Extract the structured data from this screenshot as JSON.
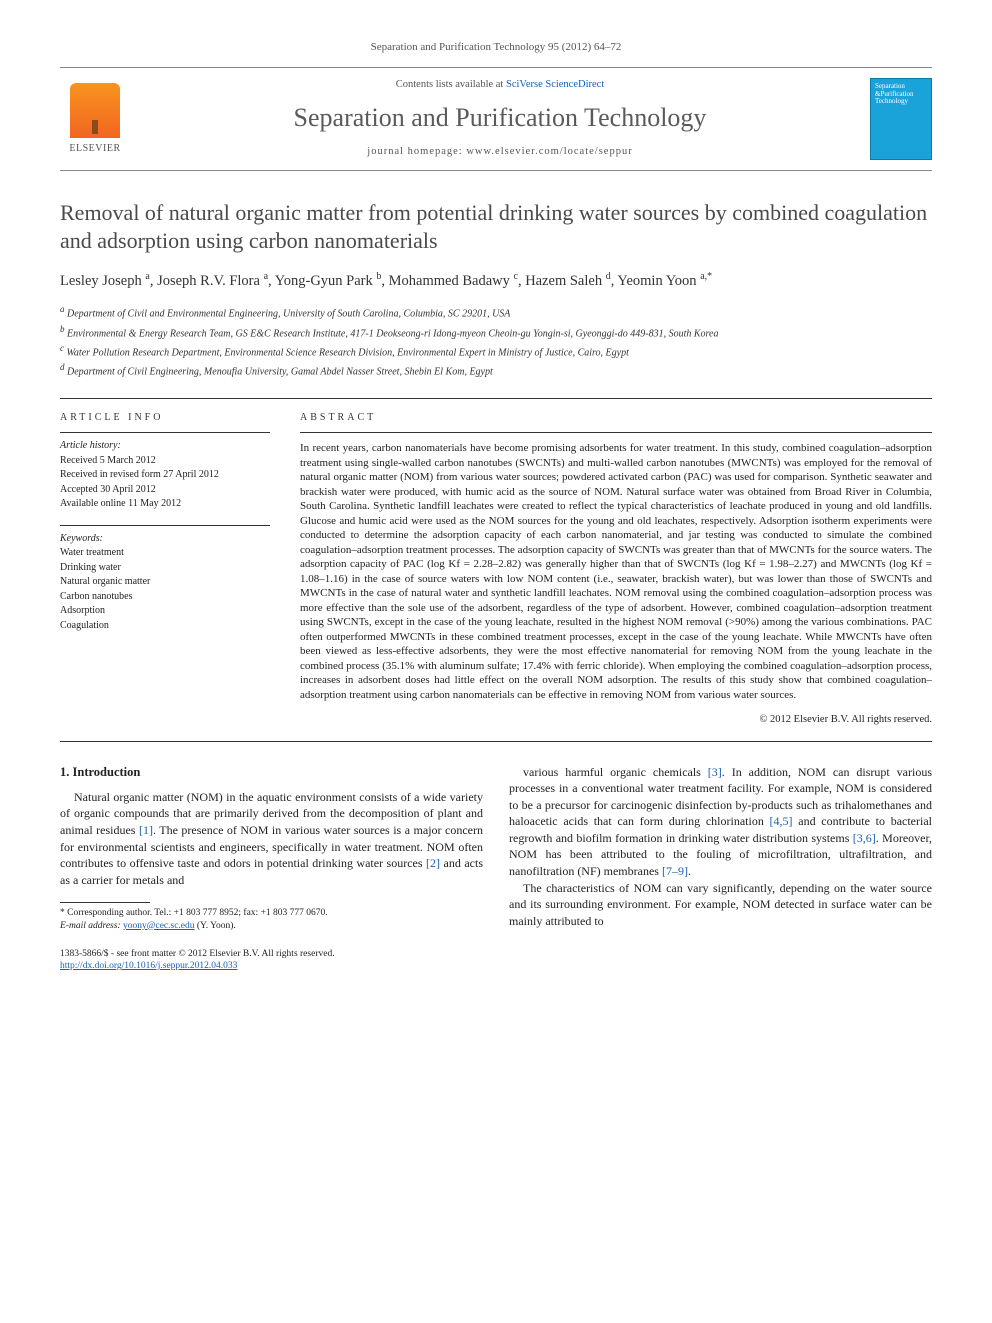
{
  "journal_ref": "Separation and Purification Technology 95 (2012) 64–72",
  "header": {
    "publisher_label": "ELSEVIER",
    "contents_prefix": "Contents lists available at ",
    "contents_link": "SciVerse ScienceDirect",
    "journal_title": "Separation and Purification Technology",
    "homepage_prefix": "journal homepage: ",
    "homepage_url": "www.elsevier.com/locate/seppur",
    "cover_text": "Separation &Purification Technology"
  },
  "article": {
    "title": "Removal of natural organic matter from potential drinking water sources by combined coagulation and adsorption using carbon nanomaterials",
    "authors_html": "Lesley Joseph <sup>a</sup>, Joseph R.V. Flora <sup>a</sup>, Yong-Gyun Park <sup>b</sup>, Mohammed Badawy <sup>c</sup>, Hazem Saleh <sup>d</sup>, Yeomin Yoon <sup>a,*</sup>",
    "affiliations": [
      "a Department of Civil and Environmental Engineering, University of South Carolina, Columbia, SC 29201, USA",
      "b Environmental & Energy Research Team, GS E&C Research Institute, 417-1 Deokseong-ri Idong-myeon Cheoin-gu Yongin-si, Gyeonggi-do 449-831, South Korea",
      "c Water Pollution Research Department, Environmental Science Research Division, Environmental Expert in Ministry of Justice, Cairo, Egypt",
      "d Department of Civil Engineering, Menoufia University, Gamal Abdel Nasser Street, Shebin El Kom, Egypt"
    ]
  },
  "article_info": {
    "heading": "ARTICLE INFO",
    "history_label": "Article history:",
    "history": [
      "Received 5 March 2012",
      "Received in revised form 27 April 2012",
      "Accepted 30 April 2012",
      "Available online 11 May 2012"
    ],
    "keywords_label": "Keywords:",
    "keywords": [
      "Water treatment",
      "Drinking water",
      "Natural organic matter",
      "Carbon nanotubes",
      "Adsorption",
      "Coagulation"
    ]
  },
  "abstract": {
    "heading": "ABSTRACT",
    "text": "In recent years, carbon nanomaterials have become promising adsorbents for water treatment. In this study, combined coagulation–adsorption treatment using single-walled carbon nanotubes (SWCNTs) and multi-walled carbon nanotubes (MWCNTs) was employed for the removal of natural organic matter (NOM) from various water sources; powdered activated carbon (PAC) was used for comparison. Synthetic seawater and brackish water were produced, with humic acid as the source of NOM. Natural surface water was obtained from Broad River in Columbia, South Carolina. Synthetic landfill leachates were created to reflect the typical characteristics of leachate produced in young and old landfills. Glucose and humic acid were used as the NOM sources for the young and old leachates, respectively. Adsorption isotherm experiments were conducted to determine the adsorption capacity of each carbon nanomaterial, and jar testing was conducted to simulate the combined coagulation–adsorption treatment processes. The adsorption capacity of SWCNTs was greater than that of MWCNTs for the source waters. The adsorption capacity of PAC (log Kf = 2.28–2.82) was generally higher than that of SWCNTs (log Kf = 1.98–2.27) and MWCNTs (log Kf = 1.08–1.16) in the case of source waters with low NOM content (i.e., seawater, brackish water), but was lower than those of SWCNTs and MWCNTs in the case of natural water and synthetic landfill leachates. NOM removal using the combined coagulation–adsorption process was more effective than the sole use of the adsorbent, regardless of the type of adsorbent. However, combined coagulation–adsorption treatment using SWCNTs, except in the case of the young leachate, resulted in the highest NOM removal (>90%) among the various combinations. PAC often outperformed MWCNTs in these combined treatment processes, except in the case of the young leachate. While MWCNTs have often been viewed as less-effective adsorbents, they were the most effective nanomaterial for removing NOM from the young leachate in the combined process (35.1% with aluminum sulfate; 17.4% with ferric chloride). When employing the combined coagulation–adsorption process, increases in adsorbent doses had little effect on the overall NOM adsorption. The results of this study show that combined coagulation–adsorption treatment using carbon nanomaterials can be effective in removing NOM from various water sources.",
    "copyright": "© 2012 Elsevier B.V. All rights reserved."
  },
  "body": {
    "section_heading": "1. Introduction",
    "left_para": "Natural organic matter (NOM) in the aquatic environment consists of a wide variety of organic compounds that are primarily derived from the decomposition of plant and animal residues [1]. The presence of NOM in various water sources is a major concern for environmental scientists and engineers, specifically in water treatment. NOM often contributes to offensive taste and odors in potential drinking water sources [2] and acts as a carrier for metals and",
    "right_para_1": "various harmful organic chemicals [3]. In addition, NOM can disrupt various processes in a conventional water treatment facility. For example, NOM is considered to be a precursor for carcinogenic disinfection by-products such as trihalomethanes and haloacetic acids that can form during chlorination [4,5] and contribute to bacterial regrowth and biofilm formation in drinking water distribution systems [3,6]. Moreover, NOM has been attributed to the fouling of microfiltration, ultrafiltration, and nanofiltration (NF) membranes [7–9].",
    "right_para_2": "The characteristics of NOM can vary significantly, depending on the water source and its surrounding environment. For example, NOM detected in surface water can be mainly attributed to"
  },
  "footnote": {
    "corr": "* Corresponding author. Tel.: +1 803 777 8952; fax: +1 803 777 0670.",
    "email_label": "E-mail address:",
    "email": "yoony@cec.sc.edu",
    "email_suffix": "(Y. Yoon)."
  },
  "footer": {
    "issn_line": "1383-5866/$ - see front matter © 2012 Elsevier B.V. All rights reserved.",
    "doi": "http://dx.doi.org/10.1016/j.seppur.2012.04.033"
  },
  "refs": {
    "r1": "[1]",
    "r2": "[2]",
    "r3": "[3]",
    "r45": "[4,5]",
    "r36": "[3,6]",
    "r79": "[7–9]"
  },
  "colors": {
    "link": "#1a5fb4",
    "title_gray": "#4a4a4a",
    "rule": "#333333",
    "logo_orange": "#f26522",
    "cover_blue": "#1aa3d9"
  }
}
